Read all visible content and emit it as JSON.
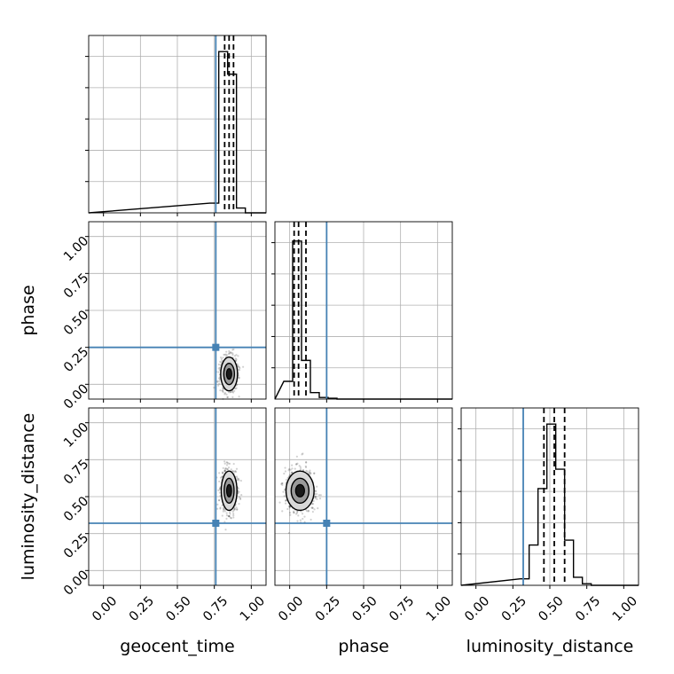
{
  "chart_data": {
    "type": "corner",
    "parameters": [
      "geocent_time",
      "phase",
      "luminosity_distance"
    ],
    "axis_labels": {
      "geocent_time": "geocent_time",
      "phase": "phase",
      "luminosity_distance": "luminosity_distance"
    },
    "ticks": [
      "0.00",
      "0.25",
      "0.50",
      "0.75",
      "1.00"
    ],
    "tick_values": [
      0,
      0.25,
      0.5,
      0.75,
      1.0
    ],
    "axis_range": [
      -0.1,
      1.1
    ],
    "grid": true,
    "truths": {
      "geocent_time": 0.76,
      "phase": 0.25,
      "luminosity_distance": 0.32
    },
    "truth_color": "#4682b4",
    "histograms": {
      "geocent_time": {
        "bins": [
          [
            0.72,
            0.78,
            0.06
          ],
          [
            0.78,
            0.84,
            1.0
          ],
          [
            0.84,
            0.9,
            0.86
          ],
          [
            0.9,
            0.96,
            0.03
          ]
        ],
        "quantiles": [
          0.82,
          0.85,
          0.88
        ],
        "ymax": 1.1
      },
      "phase": {
        "bins": [
          [
            -0.04,
            0.02,
            0.11
          ],
          [
            0.02,
            0.08,
            0.98
          ],
          [
            0.08,
            0.14,
            0.24
          ],
          [
            0.14,
            0.2,
            0.04
          ],
          [
            0.2,
            0.26,
            0.01
          ],
          [
            0.26,
            0.32,
            0.005
          ]
        ],
        "quantiles": [
          0.03,
          0.06,
          0.11
        ],
        "ymax": 1.1
      },
      "luminosity_distance": {
        "bins": [
          [
            0.3,
            0.36,
            0.04
          ],
          [
            0.36,
            0.42,
            0.25
          ],
          [
            0.42,
            0.48,
            0.6
          ],
          [
            0.48,
            0.54,
            1.0
          ],
          [
            0.54,
            0.6,
            0.72
          ],
          [
            0.6,
            0.66,
            0.28
          ],
          [
            0.66,
            0.72,
            0.05
          ],
          [
            0.72,
            0.78,
            0.01
          ]
        ],
        "quantiles": [
          0.46,
          0.53,
          0.6
        ],
        "ymax": 1.1
      }
    },
    "scatter": {
      "phase_vs_geocent_time": {
        "center": [
          0.85,
          0.07
        ],
        "spread": [
          0.03,
          0.06
        ]
      },
      "luminosity_distance_vs_geocent_time": {
        "center": [
          0.85,
          0.54
        ],
        "spread": [
          0.028,
          0.07
        ]
      },
      "luminosity_distance_vs_phase": {
        "center": [
          0.07,
          0.54
        ],
        "spread": [
          0.05,
          0.07
        ]
      }
    }
  }
}
